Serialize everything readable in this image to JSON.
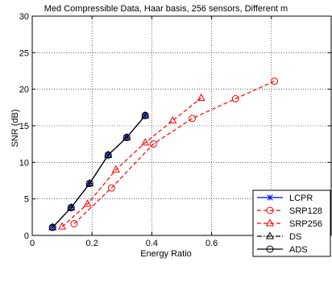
{
  "chart_data": {
    "type": "line",
    "title": "Med Compressible Data, Haar basis, 256 sensors, Different m",
    "xlabel": "Energy Ratio",
    "ylabel": "SNR (dB)",
    "xlim": [
      0,
      1
    ],
    "ylim": [
      0,
      30
    ],
    "xticks": [
      0,
      0.2,
      0.4,
      0.6,
      0.8
    ],
    "xtick_labels": [
      "0",
      "0.2",
      "0.4",
      "0.6",
      "0.8"
    ],
    "yticks": [
      0,
      5,
      10,
      15,
      20,
      25,
      30
    ],
    "ytick_labels": [
      "0",
      "5",
      "10",
      "15",
      "20",
      "25",
      "30"
    ],
    "grid": true,
    "legend_position": "bottom-right",
    "series": [
      {
        "name": "LCPR",
        "color": "#0000ff",
        "line_style": "solid",
        "marker": "asterisk",
        "x": [
          0.068,
          0.13,
          0.192,
          0.254,
          0.316,
          0.378
        ],
        "y": [
          1.1,
          3.8,
          7.1,
          11.0,
          13.4,
          16.4
        ]
      },
      {
        "name": "SRP128",
        "color": "#ff0000",
        "line_style": "dashed",
        "marker": "circle",
        "x": [
          0.14,
          0.265,
          0.405,
          0.535,
          0.68,
          0.81
        ],
        "y": [
          1.6,
          6.5,
          12.5,
          16.0,
          18.7,
          21.1
        ]
      },
      {
        "name": "SRP256",
        "color": "#ff0000",
        "line_style": "dashed",
        "marker": "triangle",
        "x": [
          0.1,
          0.185,
          0.28,
          0.378,
          0.47,
          0.565
        ],
        "y": [
          1.2,
          4.3,
          9.0,
          12.7,
          15.7,
          18.8
        ]
      },
      {
        "name": "DS",
        "color": "#000000",
        "line_style": "dashdot",
        "marker": "triangle",
        "x": [
          0.068,
          0.13,
          0.192,
          0.254,
          0.316,
          0.378
        ],
        "y": [
          1.1,
          3.8,
          7.1,
          11.0,
          13.4,
          16.4
        ]
      },
      {
        "name": "ADS",
        "color": "#000000",
        "line_style": "solid",
        "marker": "circle",
        "x": [
          0.068,
          0.13,
          0.192,
          0.254,
          0.316,
          0.378
        ],
        "y": [
          1.1,
          3.8,
          7.1,
          11.0,
          13.4,
          16.4
        ]
      }
    ]
  }
}
